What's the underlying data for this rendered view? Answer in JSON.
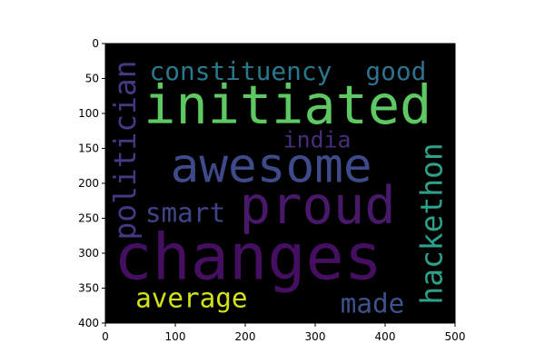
{
  "chart_data": {
    "type": "wordcloud",
    "title": "",
    "xlabel": "",
    "ylabel": "",
    "xlim": [
      0,
      500
    ],
    "ylim": [
      400,
      0
    ],
    "background": "#000000",
    "x_ticks": [
      0,
      100,
      200,
      300,
      400,
      500
    ],
    "y_ticks": [
      0,
      50,
      100,
      150,
      200,
      250,
      300,
      350,
      400
    ],
    "words": [
      {
        "text": "constituency",
        "x": 63,
        "y": 22,
        "height": 38,
        "rotate": 0,
        "color": "#2a788e"
      },
      {
        "text": "good",
        "x": 372,
        "y": 22,
        "height": 38,
        "rotate": 0,
        "color": "#2c728e"
      },
      {
        "text": "initiated",
        "x": 55,
        "y": 52,
        "height": 80,
        "rotate": 0,
        "color": "#5ec962"
      },
      {
        "text": "india",
        "x": 254,
        "y": 122,
        "height": 34,
        "rotate": 0,
        "color": "#472d7b"
      },
      {
        "text": "awesome",
        "x": 93,
        "y": 142,
        "height": 72,
        "rotate": 0,
        "color": "#3e4a89"
      },
      {
        "text": "politician",
        "x": 8,
        "y": 24,
        "height": 45,
        "rotate": -90,
        "color": "#443983"
      },
      {
        "text": "proud",
        "x": 192,
        "y": 196,
        "height": 78,
        "rotate": 0,
        "color": "#48186a"
      },
      {
        "text": "smart",
        "x": 57,
        "y": 224,
        "height": 40,
        "rotate": 0,
        "color": "#414487"
      },
      {
        "text": "hackethon",
        "x": 446,
        "y": 142,
        "height": 45,
        "rotate": -90,
        "color": "#2ea089"
      },
      {
        "text": "changes",
        "x": 12,
        "y": 262,
        "height": 96,
        "rotate": 0,
        "color": "#440f60"
      },
      {
        "text": "average",
        "x": 43,
        "y": 346,
        "height": 40,
        "rotate": 0,
        "color": "#d1e21b"
      },
      {
        "text": "made",
        "x": 336,
        "y": 354,
        "height": 40,
        "rotate": 0,
        "color": "#3b528b"
      }
    ]
  }
}
